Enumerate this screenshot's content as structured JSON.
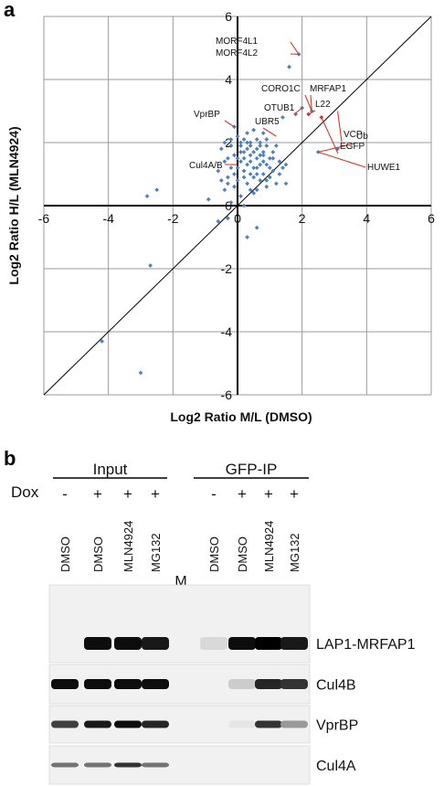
{
  "panels": {
    "a": "a",
    "b": "b"
  },
  "chart_data": {
    "type": "scatter",
    "xlabel": "Log2 Ratio M/L (DMSO)",
    "ylabel": "Log2 Ratio H/L (MLN4924)",
    "xlim": [
      -6,
      6
    ],
    "ylim": [
      -6,
      6
    ],
    "xticks": [
      "-6",
      "-4",
      "-2",
      "0",
      "2",
      "4",
      "6"
    ],
    "yticks": [
      "-6",
      "-4",
      "-2",
      "0",
      "2",
      "4",
      "6"
    ],
    "grid": true,
    "diagonal": true,
    "series": [
      {
        "color": "#4f81bd",
        "points": [
          [
            1.9,
            4.8
          ],
          [
            1.6,
            4.4
          ],
          [
            2.0,
            3.1
          ],
          [
            2.3,
            3.0
          ],
          [
            1.8,
            2.9
          ],
          [
            1.4,
            2.8
          ],
          [
            2.5,
            1.7
          ],
          [
            3.1,
            1.8
          ],
          [
            -0.1,
            2.5
          ],
          [
            -2.8,
            0.3
          ],
          [
            -2.7,
            -1.9
          ],
          [
            -4.2,
            -4.3
          ],
          [
            -3.0,
            -5.3
          ],
          [
            -2.5,
            0.5
          ],
          [
            -0.9,
            0.2
          ],
          [
            -0.6,
            -0.5
          ],
          [
            0.6,
            -0.7
          ],
          [
            0.3,
            -1.0
          ],
          [
            -0.3,
            -0.4
          ],
          [
            1.5,
            0.7
          ],
          [
            1.2,
            1.9
          ],
          [
            0.9,
            2.1
          ],
          [
            -0.4,
            1.4
          ],
          [
            -0.2,
            2.1
          ],
          [
            0.1,
            1.9
          ],
          [
            0.4,
            1.6
          ],
          [
            0.6,
            1.2
          ],
          [
            0.8,
            1.0
          ],
          [
            0.2,
            0.9
          ],
          [
            -0.1,
            0.6
          ],
          [
            0.3,
            2.3
          ],
          [
            0.7,
            2.0
          ],
          [
            0.5,
            0.4
          ],
          [
            1.0,
            1.5
          ],
          [
            0.0,
            1.2
          ],
          [
            0.2,
            1.7
          ],
          [
            -0.3,
            0.9
          ],
          [
            0.6,
            1.8
          ],
          [
            1.1,
            1.1
          ],
          [
            0.4,
            2.0
          ],
          [
            -0.5,
            1.8
          ],
          [
            0.8,
            1.6
          ],
          [
            0.1,
            0.3
          ],
          [
            0.9,
            0.6
          ],
          [
            -0.2,
            0.1
          ],
          [
            0.5,
            2.4
          ],
          [
            0.3,
            1.3
          ],
          [
            1.3,
            1.4
          ],
          [
            -0.6,
            1.1
          ],
          [
            0.7,
            0.8
          ],
          [
            0.0,
            2.2
          ],
          [
            1.4,
            1.2
          ],
          [
            0.2,
            0.0
          ],
          [
            -0.4,
            0.5
          ],
          [
            0.6,
            1.5
          ],
          [
            0.9,
            1.9
          ],
          [
            0.4,
            1.0
          ],
          [
            -0.1,
            1.6
          ],
          [
            1.0,
            0.9
          ],
          [
            0.2,
            2.1
          ],
          [
            0.8,
            2.3
          ],
          [
            0.5,
            1.7
          ],
          [
            -0.3,
            1.5
          ],
          [
            1.2,
            0.7
          ],
          [
            0.1,
            1.4
          ],
          [
            0.3,
            0.7
          ],
          [
            0.7,
            1.3
          ],
          [
            -0.2,
            1.9
          ],
          [
            0.6,
            0.5
          ],
          [
            1.1,
            1.7
          ],
          [
            0.0,
            0.8
          ],
          [
            0.4,
            1.9
          ],
          [
            0.9,
            1.3
          ],
          [
            0.2,
            1.1
          ],
          [
            -0.5,
            0.8
          ],
          [
            0.5,
            1.2
          ],
          [
            1.3,
            1.0
          ],
          [
            0.8,
            1.7
          ],
          [
            0.3,
            1.8
          ],
          [
            -0.1,
            1.0
          ],
          [
            0.6,
            2.1
          ],
          [
            1.0,
            1.2
          ],
          [
            0.1,
            1.7
          ],
          [
            0.4,
            0.5
          ],
          [
            0.7,
            1.6
          ],
          [
            -0.4,
            2.0
          ],
          [
            0.2,
            1.5
          ],
          [
            0.9,
            0.8
          ],
          [
            0.5,
            0.9
          ],
          [
            0.0,
            1.5
          ],
          [
            1.5,
            1.3
          ],
          [
            0.3,
            2.0
          ],
          [
            0.8,
            1.4
          ],
          [
            -0.2,
            1.2
          ],
          [
            0.6,
            1.0
          ],
          [
            1.1,
            1.5
          ],
          [
            0.4,
            1.4
          ],
          [
            0.1,
            2.0
          ],
          [
            0.7,
            1.9
          ],
          [
            -0.3,
            0.7
          ]
        ]
      },
      {
        "color": "#d0392c",
        "points": [
          [
            2.2,
            2.9
          ],
          [
            2.6,
            2.8
          ]
        ]
      }
    ],
    "annotations": [
      {
        "text": "MORF4L1",
        "x": 1.9,
        "y": 4.8
      },
      {
        "text": "MORF4L2",
        "x": 1.9,
        "y": 4.8
      },
      {
        "text": "CORO1C",
        "x": 2.3,
        "y": 3.0
      },
      {
        "text": "MRFAP1",
        "x": 2.3,
        "y": 3.0
      },
      {
        "text": "OTUB1",
        "x": 2.0,
        "y": 3.1
      },
      {
        "text": "L22",
        "x": 2.2,
        "y": 2.9
      },
      {
        "text": "VCP",
        "x": 3.1,
        "y": 3.0
      },
      {
        "text": "EGFP",
        "x": 2.6,
        "y": 2.8
      },
      {
        "text": "VprBP",
        "x": -0.1,
        "y": 2.5
      },
      {
        "text": "UBR5",
        "x": 1.2,
        "y": 2.2
      },
      {
        "text": "Ub",
        "x": 2.5,
        "y": 1.7
      },
      {
        "text": "HUWE1",
        "x": 2.5,
        "y": 1.7
      },
      {
        "text": "Cul4A/B",
        "x": 0.0,
        "y": 1.3
      }
    ]
  },
  "blot": {
    "groups": [
      {
        "label": "Input"
      },
      {
        "label": "GFP-IP"
      }
    ],
    "dox_label": "Dox",
    "dox_signs": [
      "-",
      "+",
      "+",
      "+",
      "",
      "-",
      "+",
      "+",
      "+"
    ],
    "lanes": [
      "DMSO",
      "DMSO",
      "MLN4924",
      "MG132",
      "M",
      "DMSO",
      "DMSO",
      "MLN4924",
      "MG132"
    ],
    "bands": [
      {
        "label": "LAP1-MRFAP1",
        "intensities": [
          0.0,
          0.95,
          0.95,
          0.9,
          0,
          0.15,
          0.95,
          1.0,
          0.9
        ]
      },
      {
        "label": "Cul4B",
        "intensities": [
          0.95,
          0.95,
          0.95,
          0.95,
          0,
          0.0,
          0.2,
          0.85,
          0.8
        ]
      },
      {
        "label": "VprBP",
        "intensities": [
          0.75,
          0.9,
          0.95,
          0.85,
          0,
          0.0,
          0.1,
          0.8,
          0.4
        ]
      },
      {
        "label": "Cul4A",
        "intensities": [
          0.55,
          0.55,
          0.8,
          0.55,
          0,
          0.0,
          0.0,
          0.0,
          0.0
        ]
      }
    ]
  }
}
